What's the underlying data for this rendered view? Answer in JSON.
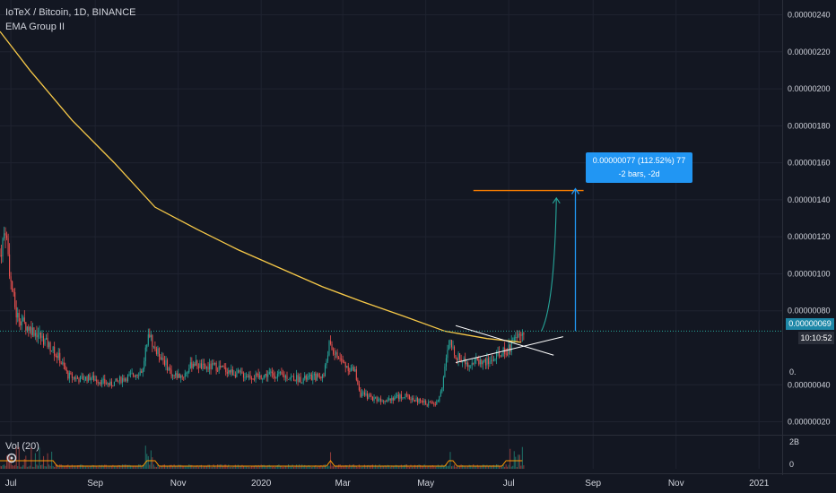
{
  "legend": {
    "symbol": "IoTeX / Bitcoin, 1D, BINANCE",
    "indicator": "EMA Group II",
    "volume": "Vol (20)"
  },
  "badges": {
    "last_price": "0.00000069",
    "timer": "10:10:52"
  },
  "measure": {
    "line1": "0.00000077 (112.52%) 77",
    "line2": "-2 bars, -2d"
  },
  "colors": {
    "background": "#131722",
    "up": "#26a69a",
    "down": "#ef5350",
    "ema": "#f7c948",
    "target": "#f57c00",
    "measure": "#2196f3",
    "price_line": "#26a69a",
    "pattern": "#ffffff"
  },
  "chart_data": {
    "type": "candlestick",
    "title": "IoTeX / Bitcoin, 1D, BINANCE",
    "y_ticks": [
      "0.00000240",
      "0.00000220",
      "0.00000200",
      "0.00000180",
      "0.00000160",
      "0.00000140",
      "0.00000120",
      "0.00000100",
      "0.00000080",
      "0.00000069",
      "0.00000040",
      "0.00000020"
    ],
    "y_tick_values": [
      240,
      220,
      200,
      180,
      160,
      140,
      120,
      100,
      80,
      69,
      40,
      20
    ],
    "y_unit_scale": 1e-08,
    "ylim": [
      13,
      248
    ],
    "x_ticks": [
      "Jul",
      "Sep",
      "Nov",
      "2020",
      "Mar",
      "May",
      "Jul",
      "Sep",
      "Nov",
      "2021"
    ],
    "x_tick_dates": [
      "2019-07-01",
      "2019-09-01",
      "2019-11-01",
      "2020-01-01",
      "2020-03-01",
      "2020-05-01",
      "2020-07-01",
      "2020-09-01",
      "2020-11-01",
      "2021-01-01"
    ],
    "xlim": [
      "2019-06-23",
      "2021-01-18"
    ],
    "close_path": [
      [
        "2019-06-23",
        110
      ],
      [
        "2019-06-27",
        125
      ],
      [
        "2019-07-01",
        95
      ],
      [
        "2019-07-05",
        78
      ],
      [
        "2019-07-12",
        72
      ],
      [
        "2019-07-20",
        68
      ],
      [
        "2019-07-28",
        62
      ],
      [
        "2019-08-05",
        55
      ],
      [
        "2019-08-12",
        45
      ],
      [
        "2019-08-20",
        43
      ],
      [
        "2019-08-28",
        44
      ],
      [
        "2019-09-05",
        42
      ],
      [
        "2019-09-12",
        40
      ],
      [
        "2019-09-20",
        43
      ],
      [
        "2019-09-28",
        45
      ],
      [
        "2019-10-06",
        48
      ],
      [
        "2019-10-10",
        70
      ],
      [
        "2019-10-14",
        60
      ],
      [
        "2019-10-20",
        55
      ],
      [
        "2019-10-28",
        45
      ],
      [
        "2019-11-05",
        45
      ],
      [
        "2019-11-12",
        52
      ],
      [
        "2019-11-20",
        49
      ],
      [
        "2019-11-28",
        50
      ],
      [
        "2019-12-06",
        48
      ],
      [
        "2019-12-14",
        46
      ],
      [
        "2019-12-22",
        45
      ],
      [
        "2019-12-30",
        44
      ],
      [
        "2020-01-07",
        46
      ],
      [
        "2020-01-15",
        45
      ],
      [
        "2020-01-23",
        44
      ],
      [
        "2020-01-31",
        43
      ],
      [
        "2020-02-08",
        44
      ],
      [
        "2020-02-16",
        45
      ],
      [
        "2020-02-20",
        62
      ],
      [
        "2020-02-26",
        55
      ],
      [
        "2020-03-04",
        50
      ],
      [
        "2020-03-10",
        47
      ],
      [
        "2020-03-14",
        35
      ],
      [
        "2020-03-22",
        33
      ],
      [
        "2020-03-30",
        32
      ],
      [
        "2020-04-07",
        33
      ],
      [
        "2020-04-15",
        34
      ],
      [
        "2020-04-23",
        32
      ],
      [
        "2020-05-01",
        30
      ],
      [
        "2020-05-09",
        30
      ],
      [
        "2020-05-13",
        40
      ],
      [
        "2020-05-16",
        55
      ],
      [
        "2020-05-19",
        62
      ],
      [
        "2020-05-24",
        55
      ],
      [
        "2020-06-01",
        52
      ],
      [
        "2020-06-08",
        53
      ],
      [
        "2020-06-16",
        52
      ],
      [
        "2020-06-24",
        56
      ],
      [
        "2020-07-02",
        60
      ],
      [
        "2020-07-08",
        66
      ],
      [
        "2020-07-12",
        69
      ]
    ],
    "ema_path": [
      [
        "2019-06-23",
        231
      ],
      [
        "2019-07-15",
        210
      ],
      [
        "2019-08-15",
        183
      ],
      [
        "2019-09-15",
        160
      ],
      [
        "2019-10-15",
        136
      ],
      [
        "2019-11-15",
        124
      ],
      [
        "2019-12-15",
        113
      ],
      [
        "2020-01-15",
        103
      ],
      [
        "2020-02-15",
        93
      ],
      [
        "2020-03-15",
        85
      ],
      [
        "2020-04-15",
        77
      ],
      [
        "2020-05-15",
        69
      ],
      [
        "2020-06-15",
        65
      ],
      [
        "2020-07-10",
        63
      ]
    ],
    "volume_ticks": [
      "2B",
      "0"
    ],
    "drawings": {
      "target_line": {
        "from": "2020-06-05",
        "to": "2020-08-25",
        "value": 145
      },
      "measure_arrow": {
        "date": "2020-08-19",
        "from": 69,
        "to": 146
      },
      "curved_arrow": {
        "from": [
          "2020-07-25",
          69
        ],
        "to": [
          "2020-08-05",
          141
        ]
      },
      "triangle_upper": {
        "from": [
          "2020-05-23",
          72
        ],
        "to": [
          "2020-08-03",
          56
        ]
      },
      "triangle_lower": {
        "from": [
          "2020-05-23",
          52
        ],
        "to": [
          "2020-08-10",
          66
        ]
      }
    }
  }
}
